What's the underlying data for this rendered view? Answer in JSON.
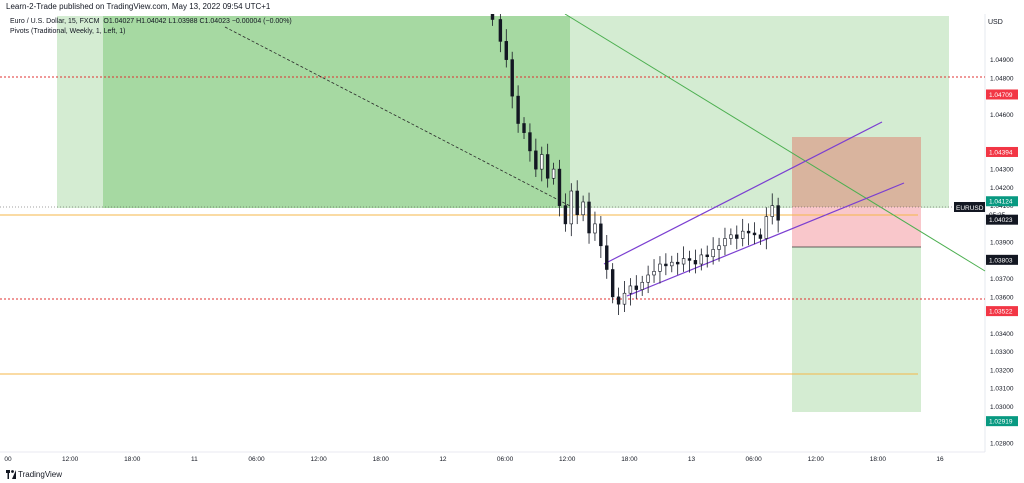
{
  "header": {
    "publisher": "Learn-2-Trade published on TradingView.com, May 13, 2022 09:54 UTC+1"
  },
  "legend": {
    "symbol": "Euro / U.S. Dollar, 15, FXCM",
    "ohlc": "O1.04027  H1.04042  L1.03988  C1.04023  −0.00004 (−0.00%)",
    "pivots": "Pivots (Traditional, Weekly, 1, Left, 1)"
  },
  "footer": {
    "brand": "TradingView",
    "logo_icon": "tradingview-logo-icon"
  },
  "chart_data": {
    "type": "candlestick",
    "symbol": "EURUSD",
    "currency": "USD",
    "ylim": [
      1.0275,
      1.0515
    ],
    "price_ticks": [
      "1.04900",
      "1.04800",
      "1.04600",
      "1.04300",
      "1.04200",
      "1.04100",
      "1.03900",
      "1.03700",
      "1.03600",
      "1.03400",
      "1.03300",
      "1.03200",
      "1.03100",
      "1.03000",
      "1.02800"
    ],
    "time_ticks": [
      "00",
      "12:00",
      "18:00",
      "11",
      "06:00",
      "12:00",
      "18:00",
      "12",
      "06:00",
      "12:00",
      "18:00",
      "13",
      "06:00",
      "12:00",
      "18:00",
      "16"
    ],
    "price_labels": [
      {
        "text": "1.04709",
        "value": 1.04709,
        "color": "#f23645"
      },
      {
        "text": "1.04394",
        "value": 1.04394,
        "color": "#f23645"
      },
      {
        "text": "1.04124",
        "value": 1.04124,
        "color": "#089981"
      },
      {
        "text": "1.04023",
        "value": 1.04023,
        "color": "#131722"
      },
      {
        "text": "1.03803",
        "value": 1.03803,
        "color": "#131722"
      },
      {
        "text": "1.03522",
        "value": 1.03522,
        "color": "#f23645"
      },
      {
        "text": "1.02919",
        "value": 1.02919,
        "color": "#089981"
      }
    ],
    "symbol_tag": "EURUSD",
    "countdown": "05:25",
    "candles_sample": [
      {
        "x": 0.505,
        "o": 1.0512,
        "h": 1.0516,
        "l": 1.05,
        "c": 1.0504
      },
      {
        "x": 0.52,
        "o": 1.048,
        "h": 1.0495,
        "l": 1.0455,
        "c": 1.046
      },
      {
        "x": 0.545,
        "o": 1.044,
        "h": 1.0448,
        "l": 1.042,
        "c": 1.0425
      },
      {
        "x": 0.57,
        "o": 1.0405,
        "h": 1.0412,
        "l": 1.039,
        "c": 1.0398
      },
      {
        "x": 0.615,
        "o": 1.038,
        "h": 1.0388,
        "l": 1.036,
        "c": 1.0365
      },
      {
        "x": 0.64,
        "o": 1.0365,
        "h": 1.0372,
        "l": 1.0353,
        "c": 1.037
      },
      {
        "x": 0.7,
        "o": 1.0378,
        "h": 1.0384,
        "l": 1.0374,
        "c": 1.0382
      },
      {
        "x": 0.76,
        "o": 1.0392,
        "h": 1.0405,
        "l": 1.0386,
        "c": 1.04
      },
      {
        "x": 0.79,
        "o": 1.0405,
        "h": 1.041,
        "l": 1.0398,
        "c": 1.0402
      }
    ]
  }
}
